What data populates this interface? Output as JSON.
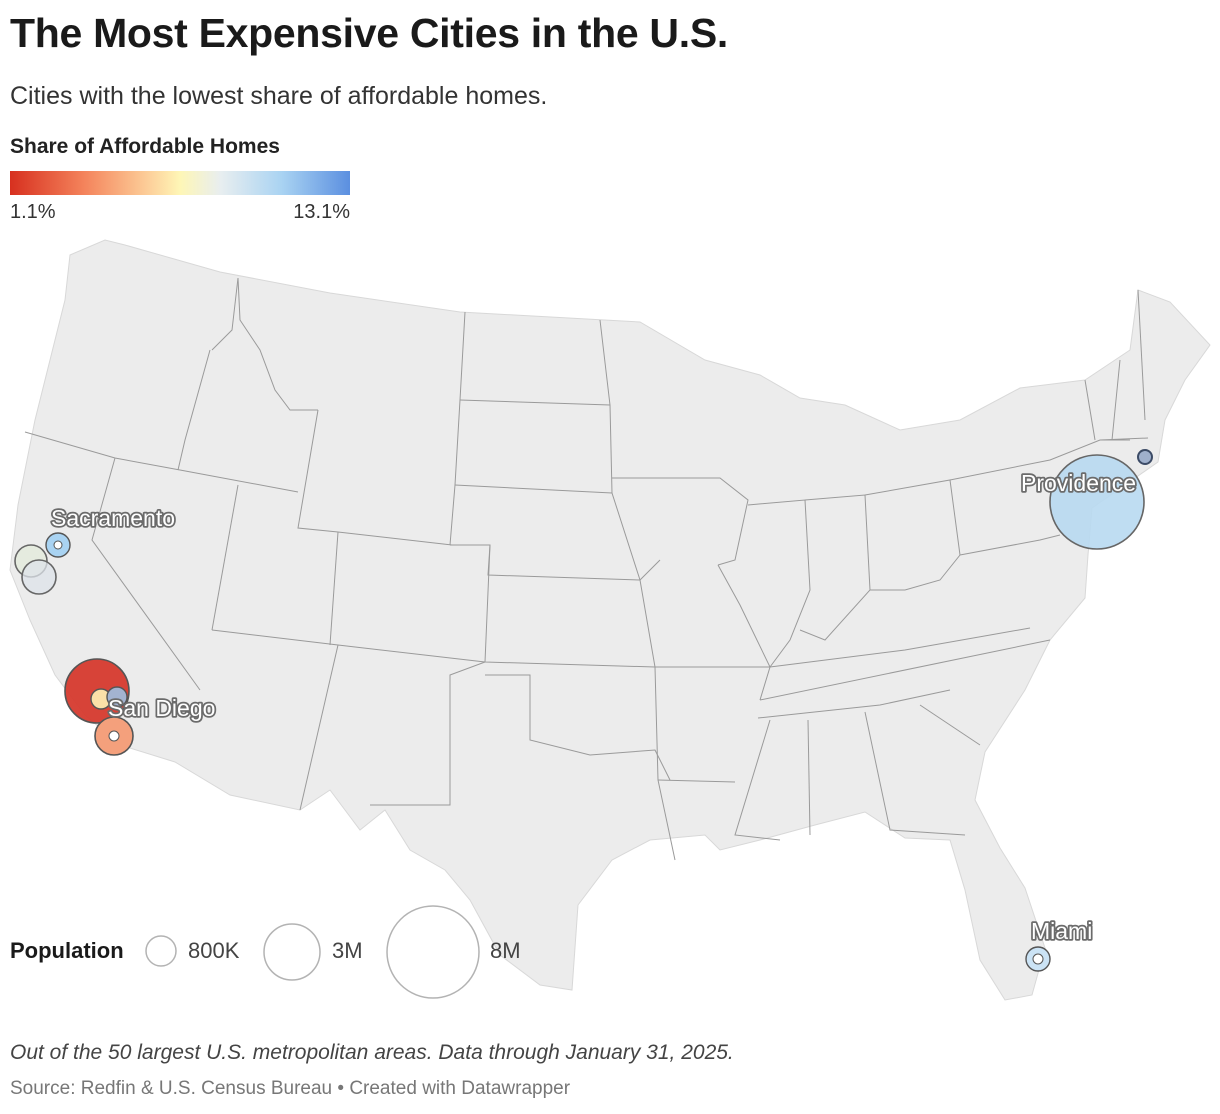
{
  "title": "The Most Expensive Cities in the U.S.",
  "subtitle": "Cities with the lowest share of affordable homes.",
  "color_legend": {
    "title": "Share of Affordable Homes",
    "min_label": "1.1%",
    "max_label": "13.1%",
    "min_value": 1.1,
    "max_value": 13.1,
    "colors": [
      "#d7301f",
      "#f4845c",
      "#fdd49e",
      "#fef6b6",
      "#e8eef0",
      "#a9d3f2",
      "#5b8fe0"
    ]
  },
  "size_legend": {
    "title": "Population",
    "items": [
      {
        "label": "800K",
        "value": 800000
      },
      {
        "label": "3M",
        "value": 3000000
      },
      {
        "label": "8M",
        "value": 8000000
      }
    ]
  },
  "city_labels": {
    "sacramento": "Sacramento",
    "san_diego": "San Diego",
    "providence": "Providence",
    "miami": "Miami"
  },
  "footnote": "Out of the 50 largest U.S. metropolitan areas. Data through January 31, 2025.",
  "source": "Source: Redfin & U.S. Census Bureau • Created with Datawrapper"
}
